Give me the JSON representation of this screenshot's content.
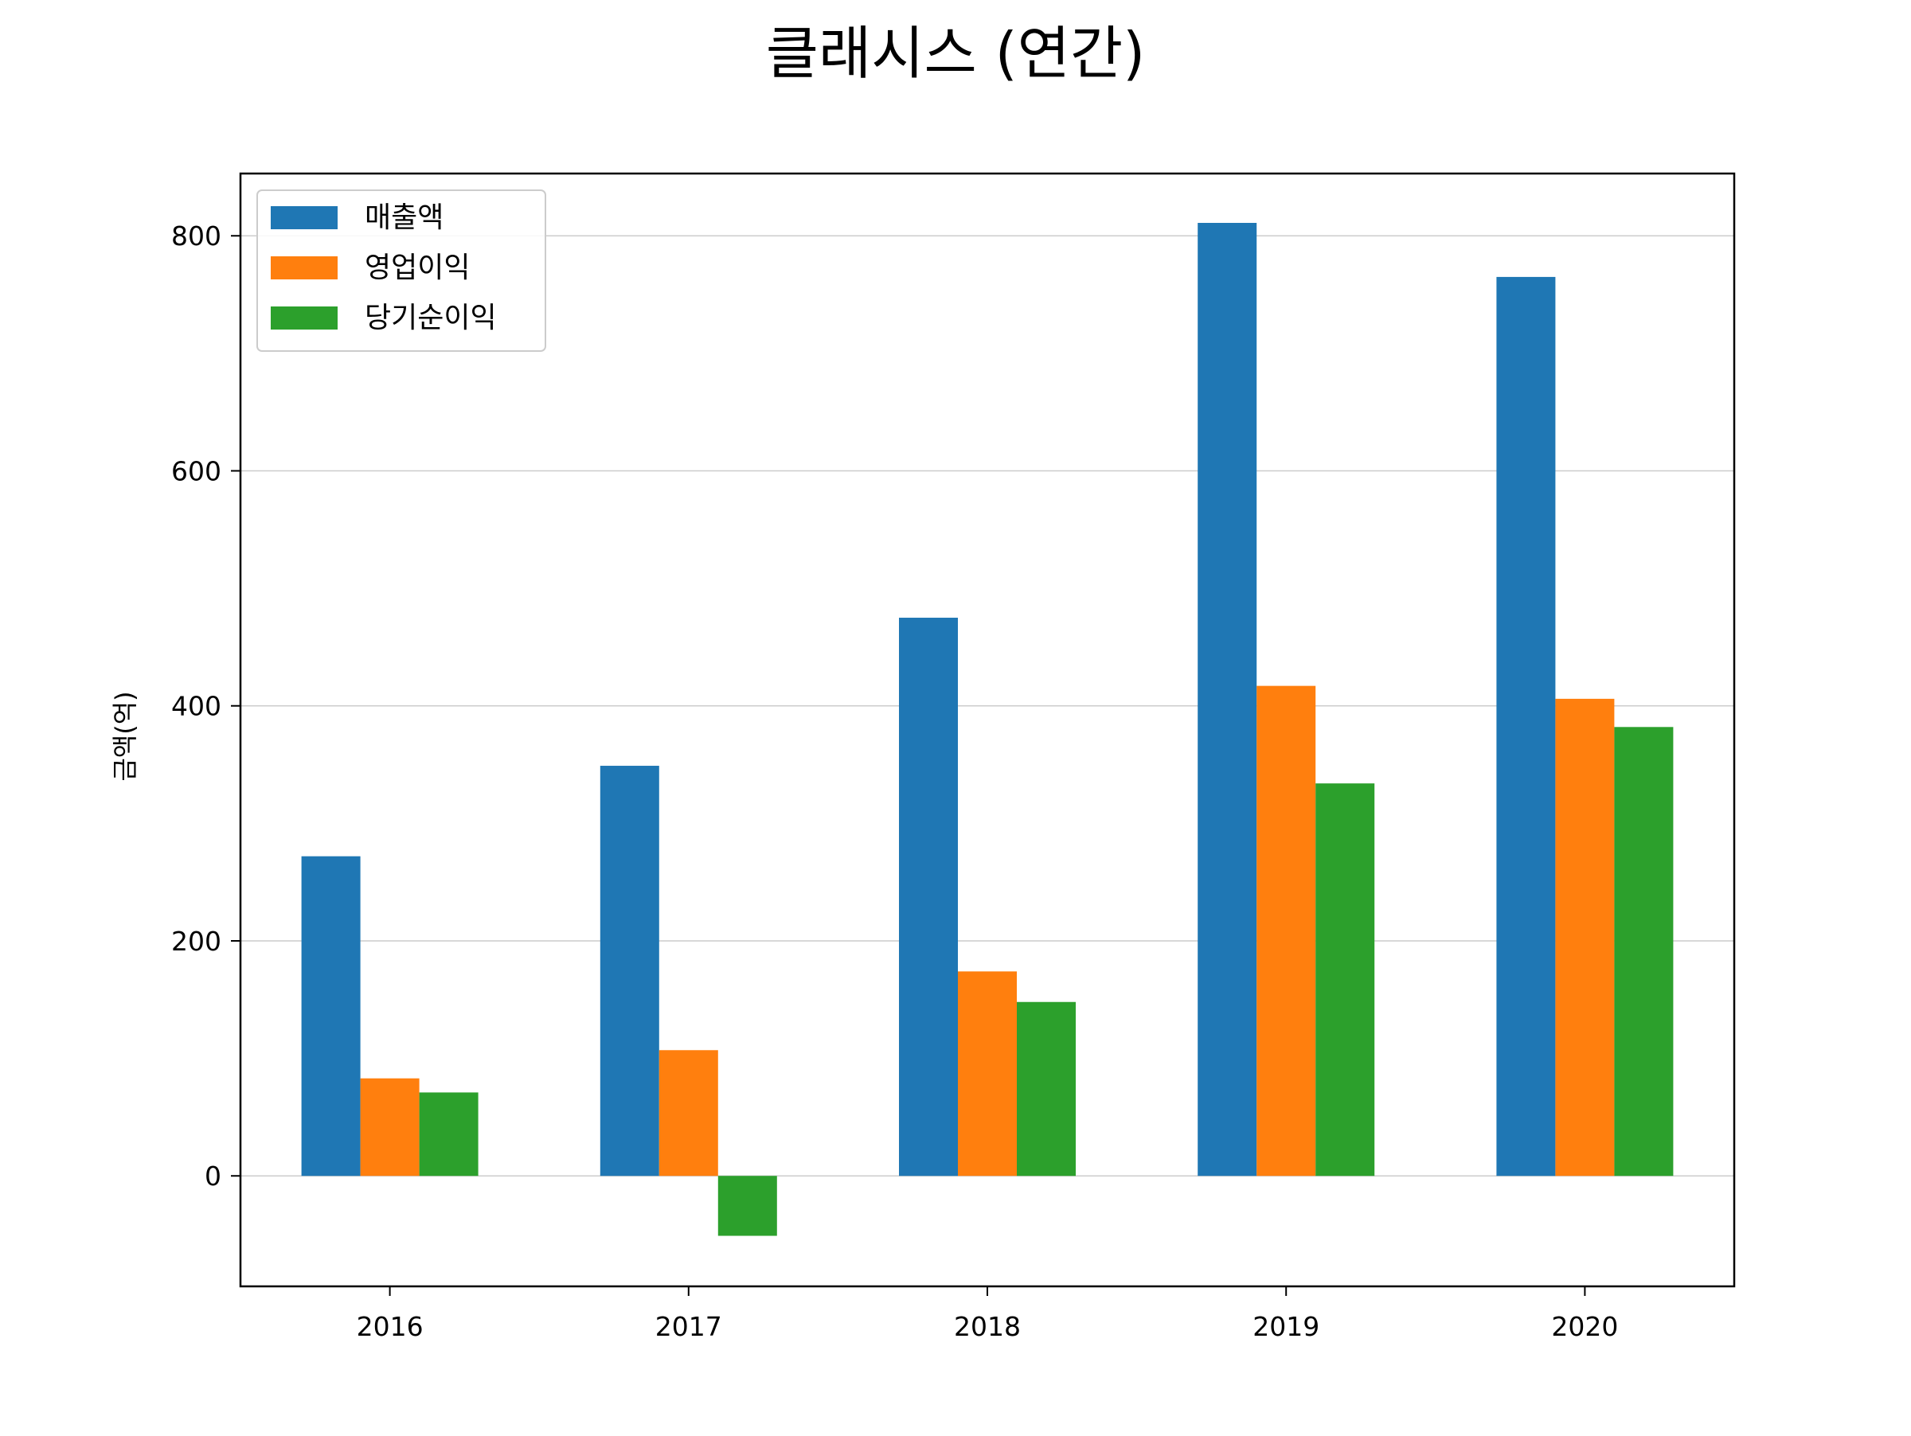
{
  "chart_data": {
    "type": "bar",
    "title": "클래시스 (연간)",
    "xlabel": "",
    "ylabel": "금액(억)",
    "categories": [
      "2016",
      "2017",
      "2018",
      "2019",
      "2020"
    ],
    "series": [
      {
        "name": "매출액",
        "color": "#1f77b4",
        "values": [
          272,
          349,
          475,
          811,
          765
        ]
      },
      {
        "name": "영업이익",
        "color": "#ff7f0e",
        "values": [
          83,
          107,
          174,
          417,
          406
        ]
      },
      {
        "name": "당기순이익",
        "color": "#2ca02c",
        "values": [
          71,
          -51,
          148,
          334,
          382
        ]
      }
    ],
    "ylim": [
      -94,
      853
    ],
    "yticks": [
      0,
      200,
      400,
      600,
      800
    ],
    "grid": "horizontal",
    "legend_position": "upper-left"
  }
}
